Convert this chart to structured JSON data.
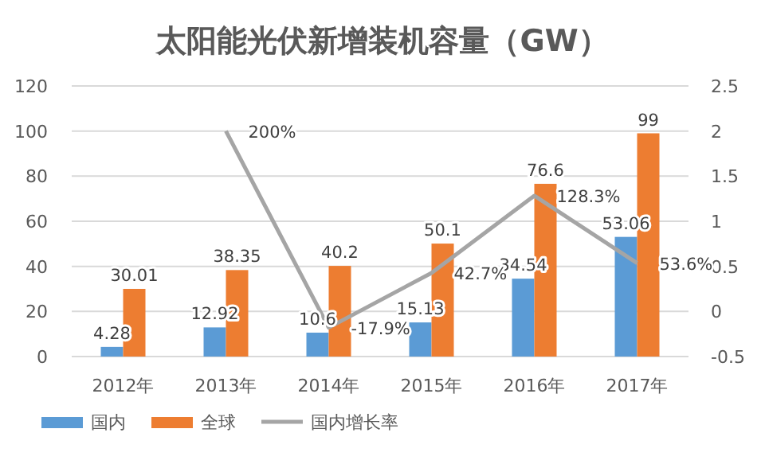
{
  "chart_data": {
    "type": "bar",
    "title": "太阳能光伏新增装机容量（GW）",
    "categories": [
      "2012年",
      "2013年",
      "2014年",
      "2015年",
      "2016年",
      "2017年"
    ],
    "series": [
      {
        "name": "国内",
        "color": "#5b9bd5",
        "values": [
          4.28,
          12.92,
          10.6,
          15.13,
          34.54,
          53.06
        ],
        "value_labels": [
          "4.28",
          "12.92",
          "10.6",
          "15.13",
          "34.54",
          "53.06"
        ]
      },
      {
        "name": "全球",
        "color": "#ed7d31",
        "values": [
          30.01,
          38.35,
          40.2,
          50.1,
          76.6,
          99
        ],
        "value_labels": [
          "30.01",
          "38.35",
          "40.2",
          "50.1",
          "76.6",
          "99"
        ]
      },
      {
        "name": "国内增长率",
        "type": "line",
        "axis": "y2",
        "color": "#a5a5a5",
        "values": [
          null,
          2,
          -0.179,
          0.427,
          1.283,
          0.536
        ],
        "value_labels": [
          null,
          "200%",
          "-17.9%",
          "42.7%",
          "128.3%",
          "53.6%"
        ]
      }
    ],
    "ylim": [
      0,
      120
    ],
    "yticks": [
      0,
      20,
      40,
      60,
      80,
      100,
      120
    ],
    "y2lim": [
      -0.5,
      2.5
    ],
    "y2ticks": [
      {
        "value": -0.5,
        "label": "-0.5"
      },
      {
        "value": 0,
        "label": "0"
      },
      {
        "value": 0.5,
        "label": "0.5"
      },
      {
        "value": 1,
        "label": "1"
      },
      {
        "value": 1.5,
        "label": "1.5"
      },
      {
        "value": 2,
        "label": "2"
      },
      {
        "value": 2.5,
        "label": "2.5"
      }
    ],
    "grid": "y",
    "legend": "bottom left",
    "marker": "none"
  }
}
